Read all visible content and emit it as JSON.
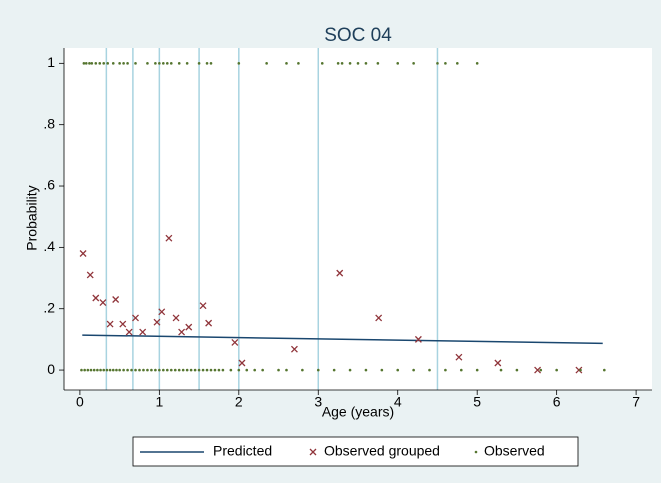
{
  "chart_data": {
    "type": "scatter",
    "title": "SOC 04",
    "xlabel": "Age (years)",
    "ylabel": "Probability",
    "xlim": [
      -0.2,
      7.2
    ],
    "ylim": [
      -0.065,
      1.05
    ],
    "xticks": [
      0,
      1,
      2,
      3,
      4,
      5,
      6,
      7
    ],
    "yticks": [
      0,
      {
        "value": 0.2,
        "label": ".2"
      },
      {
        "value": 0.4,
        "label": ".4"
      },
      {
        "value": 0.6,
        "label": ".6"
      },
      {
        "value": 0.8,
        "label": ".8"
      },
      1
    ],
    "xlines": [
      0.333,
      0.667,
      1,
      1.5,
      2,
      3,
      4.5
    ],
    "xline_color": "#a8d3e0",
    "legend": "bottom",
    "series": [
      {
        "name": "Predicted",
        "marker": "line",
        "color": "#1a476f",
        "x": [
          0.03,
          6.58
        ],
        "values": [
          0.114,
          0.087
        ]
      },
      {
        "name": "Observed grouped",
        "marker": "x",
        "color": "#90353b",
        "x": [
          0.04,
          0.13,
          0.2,
          0.29,
          0.38,
          0.45,
          0.54,
          0.62,
          0.7,
          0.79,
          0.97,
          1.03,
          1.12,
          1.21,
          1.28,
          1.37,
          1.55,
          1.62,
          1.95,
          2.04,
          2.7,
          3.27,
          3.76,
          4.26,
          4.77,
          5.26,
          5.76,
          6.28
        ],
        "values": [
          0.38,
          0.31,
          0.235,
          0.22,
          0.15,
          0.23,
          0.15,
          0.124,
          0.17,
          0.124,
          0.156,
          0.19,
          0.43,
          0.17,
          0.124,
          0.14,
          0.21,
          0.153,
          0.09,
          0.023,
          0.068,
          0.316,
          0.17,
          0.1,
          0.042,
          0.023,
          0,
          0
        ]
      },
      {
        "name": "Observed",
        "marker": "dot",
        "color": "#55752f",
        "x": [
          0.05,
          0.08,
          0.12,
          0.15,
          0.2,
          0.25,
          0.3,
          0.35,
          0.42,
          0.5,
          0.55,
          0.6,
          0.7,
          0.85,
          0.95,
          1.0,
          1.05,
          1.1,
          1.15,
          1.25,
          1.35,
          1.5,
          1.6,
          1.65,
          2.0,
          2.35,
          2.6,
          2.75,
          3.05,
          3.25,
          3.3,
          3.4,
          3.5,
          3.6,
          3.75,
          4.0,
          4.2,
          4.5,
          4.6,
          4.75,
          5.0,
          0.02,
          0.06,
          0.1,
          0.14,
          0.18,
          0.22,
          0.26,
          0.3,
          0.34,
          0.38,
          0.42,
          0.46,
          0.5,
          0.55,
          0.6,
          0.65,
          0.7,
          0.75,
          0.8,
          0.85,
          0.9,
          0.95,
          1.0,
          1.05,
          1.1,
          1.15,
          1.2,
          1.25,
          1.3,
          1.35,
          1.4,
          1.45,
          1.5,
          1.55,
          1.6,
          1.65,
          1.7,
          1.75,
          1.8,
          1.9,
          2.0,
          2.1,
          2.2,
          2.3,
          2.5,
          2.6,
          2.8,
          3.0,
          3.2,
          3.4,
          3.6,
          3.8,
          4.0,
          4.2,
          4.4,
          4.6,
          4.8,
          5.0,
          5.3,
          5.5,
          5.8,
          6.0,
          6.3,
          6.6
        ],
        "values": [
          1,
          1,
          1,
          1,
          1,
          1,
          1,
          1,
          1,
          1,
          1,
          1,
          1,
          1,
          1,
          1,
          1,
          1,
          1,
          1,
          1,
          1,
          1,
          1,
          1,
          1,
          1,
          1,
          1,
          1,
          1,
          1,
          1,
          1,
          1,
          1,
          1,
          1,
          1,
          1,
          1,
          0,
          0,
          0,
          0,
          0,
          0,
          0,
          0,
          0,
          0,
          0,
          0,
          0,
          0,
          0,
          0,
          0,
          0,
          0,
          0,
          0,
          0,
          0,
          0,
          0,
          0,
          0,
          0,
          0,
          0,
          0,
          0,
          0,
          0,
          0,
          0,
          0,
          0,
          0,
          0,
          0,
          0,
          0,
          0,
          0,
          0,
          0,
          0,
          0,
          0,
          0,
          0,
          0,
          0,
          0,
          0,
          0,
          0,
          0,
          0,
          0,
          0,
          0,
          0
        ]
      }
    ]
  }
}
